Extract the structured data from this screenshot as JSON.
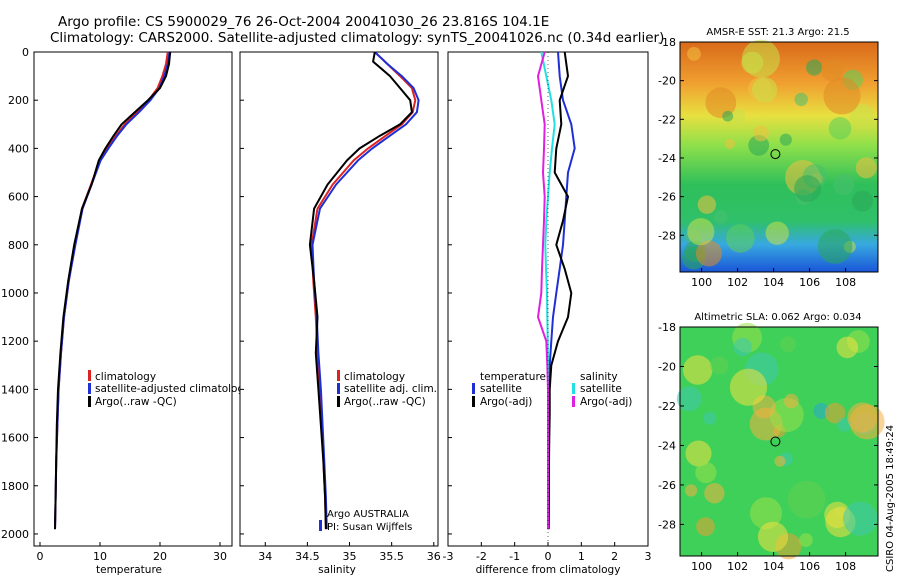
{
  "figure": {
    "title_line1": "Argo profile: CS 5900029_76 26-Oct-2004 20041030_26 23.816S 104.1E",
    "title_line2": "Climatology: CARS2000. Satellite-adjusted climatology: synTS_20041026.nc (0.34d earlier)",
    "side_label": "CSIRO 04-Aug-2005 18:49:24",
    "credit_line1": "Argo AUSTRALIA",
    "credit_line2": "PI: Susan Wijffels"
  },
  "colors": {
    "climatology": "#dd2222",
    "satellite": "#1f2fd6",
    "argo": "#000000",
    "argo_sal_adj": "#e020e0",
    "sat_sal": "#20e0e0"
  },
  "chart_data": [
    {
      "id": "temperature",
      "type": "line",
      "xlabel": "temperature",
      "ylabel": "",
      "xlim": [
        -1,
        32
      ],
      "ylim": [
        2050,
        0
      ],
      "xticks": [
        0,
        10,
        20,
        30
      ],
      "yticks": [
        0,
        200,
        400,
        600,
        800,
        1000,
        1200,
        1400,
        1600,
        1800,
        2000
      ],
      "legend": [
        "climatology",
        "satellite-adjusted climatology",
        "Argo(..raw -QC)"
      ],
      "series": [
        {
          "name": "climatology",
          "color": "#dd2222",
          "x": [
            21.3,
            21.0,
            20.4,
            19.6,
            18.1,
            16.2,
            14.1,
            12.6,
            11.2,
            10.0,
            8.5,
            7.0,
            5.8,
            4.8,
            4.0,
            3.5,
            3.1,
            2.9,
            2.7,
            2.6,
            2.5
          ],
          "y": [
            0,
            50,
            100,
            150,
            200,
            250,
            300,
            350,
            400,
            450,
            550,
            650,
            800,
            950,
            1100,
            1250,
            1400,
            1550,
            1700,
            1850,
            1980
          ]
        },
        {
          "name": "satellite-adjusted climatology",
          "color": "#1f2fd6",
          "x": [
            21.6,
            21.3,
            20.7,
            19.9,
            18.4,
            16.5,
            14.4,
            12.8,
            11.4,
            10.1,
            8.6,
            7.1,
            5.9,
            4.8,
            4.0,
            3.5,
            3.1,
            2.9,
            2.7,
            2.6,
            2.5
          ],
          "y": [
            0,
            50,
            100,
            150,
            200,
            250,
            300,
            350,
            400,
            450,
            550,
            650,
            800,
            950,
            1100,
            1250,
            1400,
            1550,
            1700,
            1850,
            1980
          ]
        },
        {
          "name": "Argo(..raw -QC)",
          "color": "#000000",
          "x": [
            21.7,
            21.5,
            21.0,
            20.0,
            18.0,
            15.8,
            13.6,
            12.2,
            10.9,
            9.8,
            8.6,
            7.0,
            5.7,
            4.7,
            3.9,
            3.4,
            3.0,
            2.8,
            2.7,
            2.6,
            2.5
          ],
          "y": [
            0,
            50,
            100,
            150,
            200,
            250,
            300,
            350,
            400,
            450,
            550,
            650,
            800,
            950,
            1100,
            1250,
            1400,
            1550,
            1700,
            1850,
            1980
          ]
        }
      ]
    },
    {
      "id": "salinity",
      "type": "line",
      "xlabel": "salinity",
      "ylabel": "",
      "xlim": [
        33.7,
        36.05
      ],
      "ylim": [
        2050,
        0
      ],
      "xticks": [
        34,
        34.5,
        35,
        35.5,
        36
      ],
      "legend": [
        "climatology",
        "satellite adj. clim.",
        "Argo(..raw -QC)"
      ],
      "series": [
        {
          "name": "climatology",
          "color": "#dd2222",
          "x": [
            35.3,
            35.45,
            35.6,
            35.74,
            35.78,
            35.75,
            35.62,
            35.42,
            35.22,
            35.05,
            34.8,
            34.62,
            34.55,
            34.57,
            34.6,
            34.62,
            34.65,
            34.67,
            34.69,
            34.71,
            34.72
          ],
          "y": [
            0,
            50,
            100,
            150,
            200,
            250,
            300,
            350,
            400,
            450,
            550,
            650,
            800,
            950,
            1100,
            1250,
            1400,
            1550,
            1700,
            1850,
            1980
          ]
        },
        {
          "name": "satellite adj. clim.",
          "color": "#1f2fd6",
          "x": [
            35.3,
            35.45,
            35.62,
            35.76,
            35.82,
            35.8,
            35.67,
            35.47,
            35.27,
            35.1,
            34.84,
            34.65,
            34.56,
            34.58,
            34.61,
            34.63,
            34.66,
            34.68,
            34.7,
            34.72,
            34.73
          ],
          "y": [
            0,
            50,
            100,
            150,
            200,
            250,
            300,
            350,
            400,
            450,
            550,
            650,
            800,
            950,
            1100,
            1250,
            1400,
            1550,
            1700,
            1850,
            1980
          ]
        },
        {
          "name": "Argo(..raw -QC)",
          "color": "#000000",
          "x": [
            35.3,
            35.28,
            35.48,
            35.6,
            35.72,
            35.74,
            35.6,
            35.35,
            35.12,
            34.97,
            34.74,
            34.58,
            34.53,
            34.58,
            34.62,
            34.6,
            34.63,
            34.66,
            34.69,
            34.71,
            34.72
          ],
          "y": [
            0,
            40,
            100,
            150,
            200,
            250,
            300,
            350,
            400,
            450,
            550,
            650,
            800,
            950,
            1100,
            1250,
            1400,
            1550,
            1700,
            1850,
            1980
          ]
        }
      ]
    },
    {
      "id": "difference",
      "type": "line",
      "xlabel": "difference from climatology",
      "ylabel": "",
      "xlim": [
        -3,
        3
      ],
      "ylim": [
        2050,
        0
      ],
      "xticks": [
        -3,
        -2,
        -1,
        0,
        1,
        2,
        3
      ],
      "legend": [
        "temperature",
        "satellite",
        "Argo(-adj)",
        "salinity",
        "satellite",
        "Argo(-adj)"
      ],
      "series": [
        {
          "name": "temperature satellite",
          "color": "#1f2fd6",
          "x": [
            0.3,
            0.35,
            0.45,
            0.7,
            0.8,
            0.6,
            0.55,
            0.5,
            0.45,
            0.35,
            0.25,
            0.15,
            0.1,
            0.05,
            0.03,
            0.02,
            0.02,
            0.01,
            0.01,
            0.01
          ],
          "y": [
            0,
            100,
            200,
            300,
            400,
            500,
            600,
            700,
            800,
            900,
            1000,
            1100,
            1200,
            1300,
            1400,
            1500,
            1600,
            1700,
            1850,
            1980
          ]
        },
        {
          "name": "temperature Argo(-adj)",
          "color": "#000000",
          "x": [
            0.5,
            0.6,
            0.35,
            0.4,
            0.25,
            0.2,
            0.6,
            0.45,
            0.25,
            0.5,
            0.7,
            0.6,
            0.3,
            0.1,
            0.05,
            0.05,
            0.04,
            0.03,
            0.03,
            0.02
          ],
          "y": [
            0,
            100,
            200,
            300,
            400,
            500,
            600,
            700,
            800,
            900,
            1000,
            1100,
            1200,
            1300,
            1400,
            1500,
            1600,
            1700,
            1850,
            1980
          ]
        },
        {
          "name": "salinity satellite",
          "color": "#20e0e0",
          "x": [
            -0.2,
            -0.05,
            0.1,
            0.2,
            0.12,
            0.05,
            0.0,
            -0.05,
            -0.08,
            -0.06,
            -0.03,
            -0.02,
            -0.01,
            0.0,
            0.0,
            0.0,
            0.0,
            0.0,
            0.0,
            0.0
          ],
          "y": [
            0,
            100,
            200,
            300,
            400,
            500,
            600,
            700,
            800,
            900,
            1000,
            1100,
            1200,
            1300,
            1400,
            1500,
            1600,
            1700,
            1850,
            1980
          ]
        },
        {
          "name": "salinity Argo(-adj)",
          "color": "#e020e0",
          "x": [
            -0.1,
            -0.3,
            -0.2,
            -0.1,
            -0.12,
            -0.15,
            -0.1,
            -0.12,
            -0.15,
            -0.18,
            -0.2,
            -0.3,
            -0.05,
            -0.02,
            0.0,
            0.0,
            0.0,
            0.0,
            0.0,
            0.0
          ],
          "y": [
            0,
            100,
            200,
            300,
            400,
            500,
            600,
            700,
            800,
            900,
            1000,
            1100,
            1200,
            1300,
            1400,
            1500,
            1600,
            1700,
            1850,
            1980
          ]
        }
      ]
    },
    {
      "id": "sst_map",
      "type": "heatmap",
      "title": "AMSR-E SST: 21.3 Argo: 21.5",
      "xlim": [
        98.8,
        109.8
      ],
      "ylim": [
        -29.9,
        -18
      ],
      "xticks": [
        100,
        102,
        104,
        106,
        108
      ],
      "yticks": [
        -18,
        -20,
        -22,
        -24,
        -26,
        -28
      ],
      "marker": {
        "x": 104.1,
        "y": -23.8
      }
    },
    {
      "id": "sla_map",
      "type": "heatmap",
      "title": "Altimetric SLA: 0.062 Argo: 0.034",
      "xlim": [
        98.8,
        109.8
      ],
      "ylim": [
        -29.6,
        -18
      ],
      "xticks": [
        100,
        102,
        104,
        106,
        108
      ],
      "yticks": [
        -18,
        -20,
        -22,
        -24,
        -26,
        -28
      ],
      "marker": {
        "x": 104.1,
        "y": -23.8
      }
    }
  ]
}
